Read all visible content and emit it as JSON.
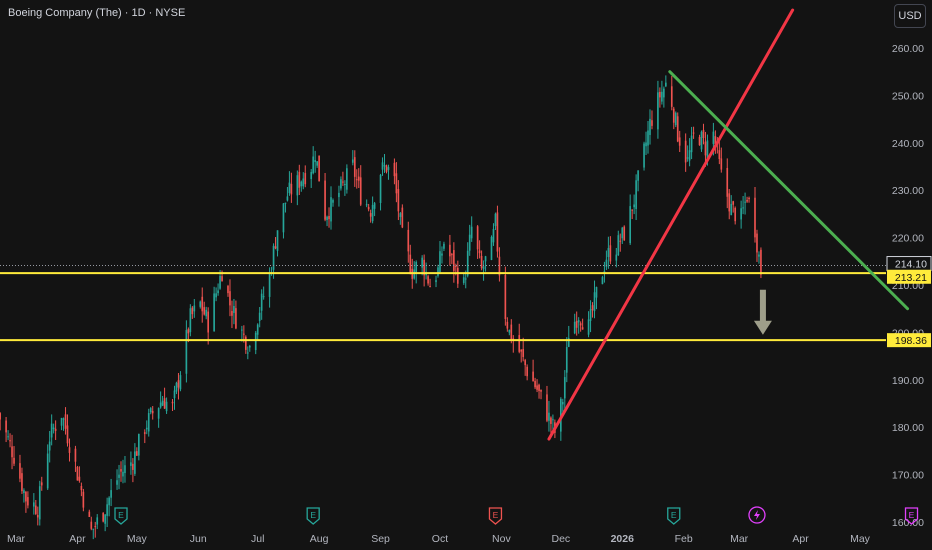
{
  "header": {
    "title": "Boeing Company (The) · 1D · NYSE",
    "currency_label": "USD"
  },
  "colors": {
    "background": "#131313",
    "up": "#26a69a",
    "down": "#ef5350",
    "axis_text": "#b2b5be",
    "level_line": "#ffeb3b",
    "support_trend": "#f23645",
    "resistance_trend": "#4caf50",
    "arrow": "#9e9e8a",
    "earnings_icon": "#26a69a",
    "earnings_next_icon": "#e040fb",
    "dividend_icon": "#ef5350"
  },
  "chart_data": {
    "type": "candlestick",
    "ylim": [
      160,
      264
    ],
    "y_ticks": [
      160,
      170,
      180,
      190,
      200,
      210,
      220,
      230,
      240,
      250,
      260
    ],
    "y_tick_labels": [
      "160.00",
      "170.00",
      "180.00",
      "190.00",
      "200.00",
      "210.00",
      "220.00",
      "230.00",
      "240.00",
      "250.00",
      "260.00"
    ],
    "x_labels": [
      {
        "label": "Mar",
        "date": "2025-03-01"
      },
      {
        "label": "Apr",
        "date": "2025-04-01"
      },
      {
        "label": "May",
        "date": "2025-05-01"
      },
      {
        "label": "Jun",
        "date": "2025-06-01"
      },
      {
        "label": "Jul",
        "date": "2025-07-01"
      },
      {
        "label": "Aug",
        "date": "2025-08-01"
      },
      {
        "label": "Sep",
        "date": "2025-09-01"
      },
      {
        "label": "Oct",
        "date": "2025-10-01"
      },
      {
        "label": "Nov",
        "date": "2025-11-01"
      },
      {
        "label": "Dec",
        "date": "2025-12-01"
      },
      {
        "label": "2026",
        "date": "2026-01-01"
      },
      {
        "label": "Feb",
        "date": "2026-02-01"
      },
      {
        "label": "Mar",
        "date": "2026-03-01"
      },
      {
        "label": "Apr",
        "date": "2026-04-01"
      },
      {
        "label": "May",
        "date": "2026-05-01"
      }
    ],
    "close_path": [
      [
        "2025-02-20",
        183
      ],
      [
        "2025-02-28",
        174
      ],
      [
        "2025-03-06",
        165
      ],
      [
        "2025-03-12",
        163
      ],
      [
        "2025-03-18",
        178
      ],
      [
        "2025-03-24",
        183
      ],
      [
        "2025-03-31",
        172
      ],
      [
        "2025-04-04",
        165
      ],
      [
        "2025-04-08",
        158
      ],
      [
        "2025-04-14",
        162
      ],
      [
        "2025-04-22",
        170
      ],
      [
        "2025-04-29",
        173
      ],
      [
        "2025-05-05",
        180
      ],
      [
        "2025-05-09",
        183
      ],
      [
        "2025-05-14",
        186
      ],
      [
        "2025-05-19",
        184
      ],
      [
        "2025-05-23",
        192
      ],
      [
        "2025-05-28",
        203
      ],
      [
        "2025-06-02",
        206
      ],
      [
        "2025-06-06",
        202
      ],
      [
        "2025-06-11",
        210
      ],
      [
        "2025-06-13",
        213
      ],
      [
        "2025-06-17",
        206
      ],
      [
        "2025-06-23",
        200
      ],
      [
        "2025-06-27",
        197
      ],
      [
        "2025-07-02",
        205
      ],
      [
        "2025-07-07",
        212
      ],
      [
        "2025-07-11",
        222
      ],
      [
        "2025-07-16",
        229
      ],
      [
        "2025-07-22",
        232
      ],
      [
        "2025-07-28",
        235
      ],
      [
        "2025-07-30",
        238
      ],
      [
        "2025-08-04",
        225
      ],
      [
        "2025-08-08",
        227
      ],
      [
        "2025-08-13",
        231
      ],
      [
        "2025-08-18",
        235
      ],
      [
        "2025-08-22",
        229
      ],
      [
        "2025-08-27",
        226
      ],
      [
        "2025-09-01",
        234
      ],
      [
        "2025-09-04",
        235
      ],
      [
        "2025-09-08",
        232
      ],
      [
        "2025-09-12",
        220
      ],
      [
        "2025-09-17",
        213
      ],
      [
        "2025-09-22",
        215
      ],
      [
        "2025-09-26",
        210
      ],
      [
        "2025-09-30",
        213
      ],
      [
        "2025-10-03",
        219
      ],
      [
        "2025-10-08",
        214
      ],
      [
        "2025-10-13",
        210
      ],
      [
        "2025-10-17",
        222
      ],
      [
        "2025-10-22",
        213
      ],
      [
        "2025-10-27",
        218
      ],
      [
        "2025-10-29",
        223
      ],
      [
        "2025-11-01",
        208
      ],
      [
        "2025-11-05",
        200
      ],
      [
        "2025-11-10",
        196
      ],
      [
        "2025-11-14",
        192
      ],
      [
        "2025-11-19",
        188
      ],
      [
        "2025-11-24",
        183
      ],
      [
        "2025-11-28",
        179
      ],
      [
        "2025-12-02",
        186
      ],
      [
        "2025-12-05",
        200
      ],
      [
        "2025-12-10",
        204
      ],
      [
        "2025-12-15",
        201
      ],
      [
        "2025-12-19",
        208
      ],
      [
        "2025-12-24",
        216
      ],
      [
        "2025-12-29",
        218
      ],
      [
        "2026-01-02",
        221
      ],
      [
        "2026-01-07",
        228
      ],
      [
        "2026-01-12",
        238
      ],
      [
        "2026-01-15",
        244
      ],
      [
        "2026-01-20",
        250
      ],
      [
        "2026-01-24",
        253
      ],
      [
        "2026-01-29",
        242
      ],
      [
        "2026-02-03",
        236
      ],
      [
        "2026-02-07",
        243
      ],
      [
        "2026-02-12",
        239
      ],
      [
        "2026-02-16",
        242
      ],
      [
        "2026-02-20",
        233
      ],
      [
        "2026-02-25",
        226
      ],
      [
        "2026-03-02",
        224
      ],
      [
        "2026-03-05",
        229
      ],
      [
        "2026-03-09",
        222
      ],
      [
        "2026-03-12",
        213
      ]
    ],
    "price_labels": [
      {
        "value": 214.1,
        "label": "214.10",
        "style": "outline"
      },
      {
        "value": 213.21,
        "label": "213.21",
        "style": "filled"
      },
      {
        "value": 198.36,
        "label": "198.36",
        "style": "filled"
      }
    ],
    "horizontal_levels": [
      212.5,
      198.36
    ],
    "trendlines": [
      {
        "role": "support",
        "from": [
          "2025-11-25",
          177.5
        ],
        "to": [
          "2026-03-28",
          268
        ]
      },
      {
        "role": "resistance",
        "from": [
          "2026-01-25",
          255
        ],
        "to": [
          "2026-05-25",
          205
        ]
      }
    ],
    "projection_arrow": {
      "date": "2026-03-13",
      "from": 209,
      "to": 199.5
    },
    "events": [
      {
        "type": "earnings",
        "label": "E",
        "date": "2025-04-23"
      },
      {
        "type": "earnings",
        "label": "E",
        "date": "2025-07-29"
      },
      {
        "type": "dividend",
        "label": "E",
        "date": "2025-10-29"
      },
      {
        "type": "earnings",
        "label": "E",
        "date": "2026-01-27"
      },
      {
        "type": "earnings",
        "label": "E",
        "date": "2026-05-27"
      }
    ]
  }
}
